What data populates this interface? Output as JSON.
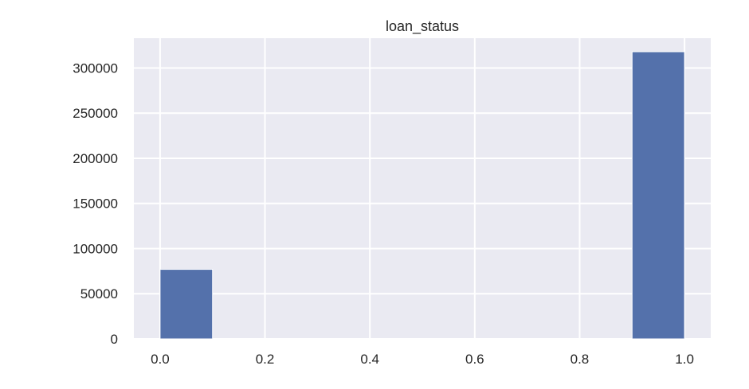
{
  "chart_data": {
    "type": "bar",
    "title": "loan_status",
    "cropped_header_text": "",
    "xlabel": "",
    "ylabel": "",
    "xlim": [
      -0.05,
      1.05
    ],
    "ylim": [
      0,
      333000
    ],
    "x_ticks": [
      0.0,
      0.2,
      0.4,
      0.6,
      0.8,
      1.0
    ],
    "x_tick_labels": [
      "0.0",
      "0.2",
      "0.4",
      "0.6",
      "0.8",
      "1.0"
    ],
    "y_ticks": [
      0,
      50000,
      100000,
      150000,
      200000,
      250000,
      300000
    ],
    "y_tick_labels": [
      "0",
      "50000",
      "100000",
      "150000",
      "200000",
      "250000",
      "300000"
    ],
    "bins": [
      {
        "x0": 0.0,
        "x1": 0.1,
        "count": 77000
      },
      {
        "x0": 0.1,
        "x1": 0.2,
        "count": 0
      },
      {
        "x0": 0.2,
        "x1": 0.3,
        "count": 0
      },
      {
        "x0": 0.3,
        "x1": 0.4,
        "count": 0
      },
      {
        "x0": 0.4,
        "x1": 0.5,
        "count": 0
      },
      {
        "x0": 0.5,
        "x1": 0.6,
        "count": 0
      },
      {
        "x0": 0.6,
        "x1": 0.7,
        "count": 0
      },
      {
        "x0": 0.7,
        "x1": 0.8,
        "count": 0
      },
      {
        "x0": 0.8,
        "x1": 0.9,
        "count": 0
      },
      {
        "x0": 0.9,
        "x1": 1.0,
        "count": 318000
      }
    ],
    "grid": true,
    "legend": "none",
    "colors": {
      "bar": "#5471ab",
      "plot_background": "#eaeaf2",
      "grid": "#ffffff",
      "text": "#262626"
    }
  }
}
